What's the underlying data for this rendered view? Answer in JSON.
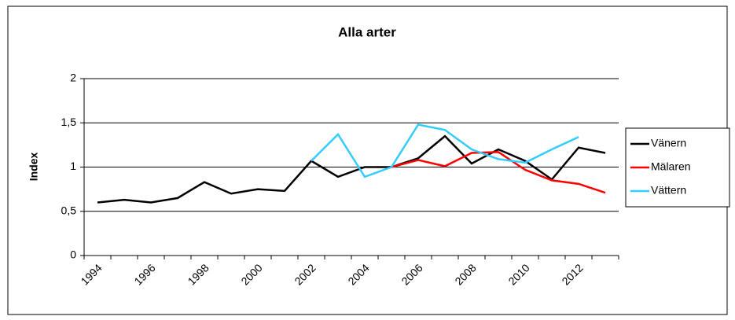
{
  "chart_data": {
    "type": "line",
    "title": "Alla arter",
    "y_label": "Index",
    "categories": [
      "1994",
      null,
      "1996",
      null,
      "1998",
      null,
      "2000",
      null,
      "2002",
      null,
      "2004",
      null,
      "2006",
      null,
      "2008",
      null,
      "2010",
      null,
      "2012",
      null
    ],
    "series": [
      {
        "name": "Vänern",
        "color": "#000000",
        "values": [
          0.6,
          0.63,
          0.6,
          0.65,
          0.83,
          0.7,
          0.75,
          0.73,
          1.07,
          0.89,
          1.0,
          1.0,
          1.1,
          1.35,
          1.04,
          1.2,
          1.07,
          0.86,
          1.22,
          1.16
        ]
      },
      {
        "name": "Mälaren",
        "color": "#ff0000",
        "values": [
          null,
          null,
          null,
          null,
          null,
          null,
          null,
          null,
          null,
          null,
          null,
          1.0,
          1.08,
          1.01,
          1.16,
          1.17,
          0.97,
          0.85,
          0.81,
          0.71
        ]
      },
      {
        "name": "Vättern",
        "color": "#33ccff",
        "values": [
          null,
          null,
          null,
          null,
          null,
          null,
          null,
          null,
          1.07,
          1.37,
          0.89,
          1.0,
          1.48,
          1.42,
          1.2,
          1.09,
          1.05,
          1.2,
          1.34,
          null
        ]
      }
    ],
    "ylim": [
      0,
      2
    ],
    "yticks": [
      0,
      {
        "value": 0.5,
        "label": "0,5"
      },
      1,
      {
        "value": 1.5,
        "label": "1,5"
      },
      2
    ],
    "grid": true,
    "legend": "right"
  }
}
